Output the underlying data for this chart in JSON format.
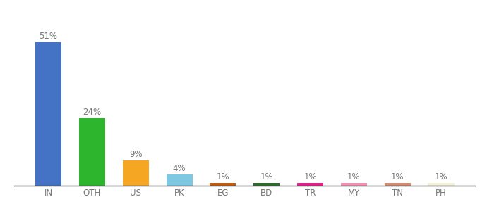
{
  "categories": [
    "IN",
    "OTH",
    "US",
    "PK",
    "EG",
    "BD",
    "TR",
    "MY",
    "TN",
    "PH"
  ],
  "values": [
    51,
    24,
    9,
    4,
    1,
    1,
    1,
    1,
    1,
    1
  ],
  "labels": [
    "51%",
    "24%",
    "9%",
    "4%",
    "1%",
    "1%",
    "1%",
    "1%",
    "1%",
    "1%"
  ],
  "colors": [
    "#4472c4",
    "#2db52d",
    "#f5a623",
    "#7ec8e3",
    "#c65d10",
    "#2d6e2d",
    "#e91e8c",
    "#f48fb1",
    "#d4896a",
    "#f5f0d8"
  ],
  "background_color": "#ffffff",
  "ylim": [
    0,
    57
  ],
  "label_fontsize": 8.5,
  "tick_fontsize": 8.5,
  "label_color": "#777777"
}
